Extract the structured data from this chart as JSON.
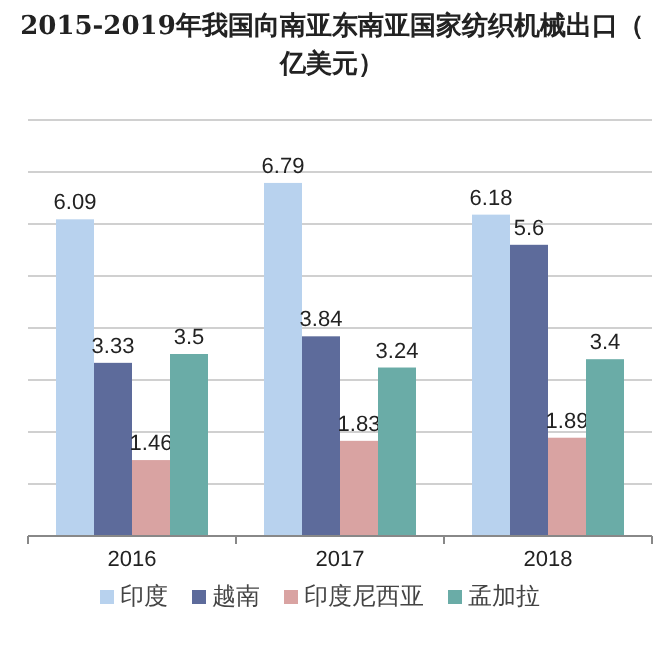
{
  "chart_data": {
    "type": "bar",
    "title": "2015-2019年我国向南亚东南亚国家纺织机械出口（亿美元）",
    "categories": [
      "2016",
      "2017",
      "2018"
    ],
    "series": [
      {
        "name": "印度",
        "color": "#b8d2ee",
        "values": [
          6.09,
          6.79,
          6.18
        ]
      },
      {
        "name": "越南",
        "color": "#5d6b9b",
        "values": [
          3.33,
          3.84,
          5.6
        ]
      },
      {
        "name": "印度尼西亚",
        "color": "#d9a3a2",
        "values": [
          1.46,
          1.83,
          1.89
        ]
      },
      {
        "name": "孟加拉",
        "color": "#6aaca7",
        "values": [
          3.5,
          3.24,
          3.4
        ]
      }
    ],
    "ylim": [
      0,
      8
    ],
    "yticks": [
      {
        "value": 0,
        "label": null
      },
      {
        "value": 1,
        "label": null
      },
      {
        "value": 2,
        "label": null
      },
      {
        "value": 3,
        "label": null
      },
      {
        "value": 4,
        "label": null
      },
      {
        "value": 5,
        "label": null
      },
      {
        "value": 6,
        "label": null
      },
      {
        "value": 7,
        "label": null
      },
      {
        "value": 8,
        "label": null
      }
    ],
    "grid": "y",
    "legend": "bottom",
    "data_labels": true,
    "tick_labels": "x"
  }
}
